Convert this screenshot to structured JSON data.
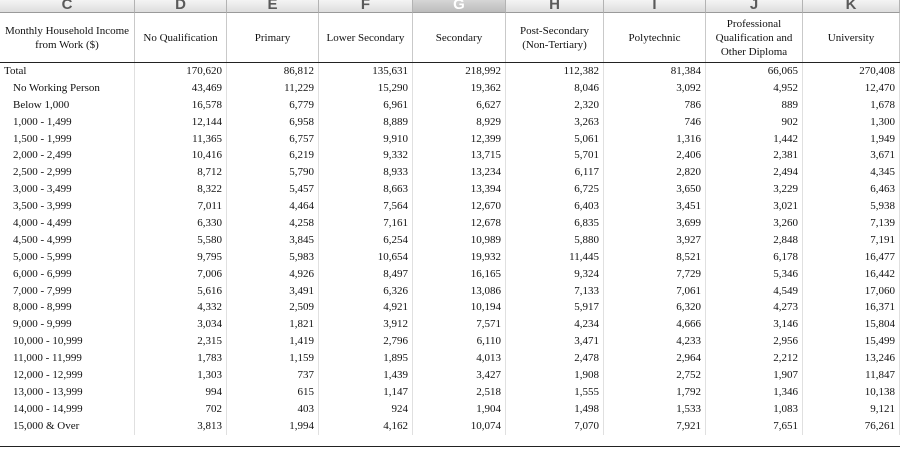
{
  "column_letters": [
    "C",
    "D",
    "E",
    "F",
    "G",
    "H",
    "I",
    "J",
    "K"
  ],
  "selected_column": "G",
  "headers": [
    "Monthly Household Income from Work ($)",
    "No Qualification",
    "Primary",
    "Lower Secondary",
    "Secondary",
    "Post-Secondary (Non-Tertiary)",
    "Polytechnic",
    "Professional Qualification and Other Diploma",
    "University"
  ],
  "rows": [
    {
      "label": "Total",
      "values": [
        "170,620",
        "86,812",
        "135,631",
        "218,992",
        "112,382",
        "81,384",
        "66,065",
        "270,408"
      ]
    },
    {
      "label": "No Working Person",
      "values": [
        "43,469",
        "11,229",
        "15,290",
        "19,362",
        "8,046",
        "3,092",
        "4,952",
        "12,470"
      ]
    },
    {
      "label": "Below 1,000",
      "values": [
        "16,578",
        "6,779",
        "6,961",
        "6,627",
        "2,320",
        "786",
        "889",
        "1,678"
      ]
    },
    {
      "label": "1,000 - 1,499",
      "values": [
        "12,144",
        "6,958",
        "8,889",
        "8,929",
        "3,263",
        "746",
        "902",
        "1,300"
      ]
    },
    {
      "label": "1,500 - 1,999",
      "values": [
        "11,365",
        "6,757",
        "9,910",
        "12,399",
        "5,061",
        "1,316",
        "1,442",
        "1,949"
      ]
    },
    {
      "label": "2,000 - 2,499",
      "values": [
        "10,416",
        "6,219",
        "9,332",
        "13,715",
        "5,701",
        "2,406",
        "2,381",
        "3,671"
      ]
    },
    {
      "label": "2,500 - 2,999",
      "values": [
        "8,712",
        "5,790",
        "8,933",
        "13,234",
        "6,117",
        "2,820",
        "2,494",
        "4,345"
      ]
    },
    {
      "label": "3,000 - 3,499",
      "values": [
        "8,322",
        "5,457",
        "8,663",
        "13,394",
        "6,725",
        "3,650",
        "3,229",
        "6,463"
      ]
    },
    {
      "label": "3,500 - 3,999",
      "values": [
        "7,011",
        "4,464",
        "7,564",
        "12,670",
        "6,403",
        "3,451",
        "3,021",
        "5,938"
      ]
    },
    {
      "label": "4,000 - 4,499",
      "values": [
        "6,330",
        "4,258",
        "7,161",
        "12,678",
        "6,835",
        "3,699",
        "3,260",
        "7,139"
      ]
    },
    {
      "label": "4,500 - 4,999",
      "values": [
        "5,580",
        "3,845",
        "6,254",
        "10,989",
        "5,880",
        "3,927",
        "2,848",
        "7,191"
      ]
    },
    {
      "label": "5,000 - 5,999",
      "values": [
        "9,795",
        "5,983",
        "10,654",
        "19,932",
        "11,445",
        "8,521",
        "6,178",
        "16,477"
      ]
    },
    {
      "label": "6,000 - 6,999",
      "values": [
        "7,006",
        "4,926",
        "8,497",
        "16,165",
        "9,324",
        "7,729",
        "5,346",
        "16,442"
      ]
    },
    {
      "label": "7,000 - 7,999",
      "values": [
        "5,616",
        "3,491",
        "6,326",
        "13,086",
        "7,133",
        "7,061",
        "4,549",
        "17,060"
      ]
    },
    {
      "label": "8,000 - 8,999",
      "values": [
        "4,332",
        "2,509",
        "4,921",
        "10,194",
        "5,917",
        "6,320",
        "4,273",
        "16,371"
      ]
    },
    {
      "label": "9,000 - 9,999",
      "values": [
        "3,034",
        "1,821",
        "3,912",
        "7,571",
        "4,234",
        "4,666",
        "3,146",
        "15,804"
      ]
    },
    {
      "label": "10,000 - 10,999",
      "values": [
        "2,315",
        "1,419",
        "2,796",
        "6,110",
        "3,471",
        "4,233",
        "2,956",
        "15,499"
      ]
    },
    {
      "label": "11,000 - 11,999",
      "values": [
        "1,783",
        "1,159",
        "1,895",
        "4,013",
        "2,478",
        "2,964",
        "2,212",
        "13,246"
      ]
    },
    {
      "label": "12,000 - 12,999",
      "values": [
        "1,303",
        "737",
        "1,439",
        "3,427",
        "1,908",
        "2,752",
        "1,907",
        "11,847"
      ]
    },
    {
      "label": "13,000 - 13,999",
      "values": [
        "994",
        "615",
        "1,147",
        "2,518",
        "1,555",
        "1,792",
        "1,346",
        "10,138"
      ]
    },
    {
      "label": "14,000 - 14,999",
      "values": [
        "702",
        "403",
        "924",
        "1,904",
        "1,498",
        "1,533",
        "1,083",
        "9,121"
      ]
    },
    {
      "label": "15,000 & Over",
      "values": [
        "3,813",
        "1,994",
        "4,162",
        "10,074",
        "7,070",
        "7,921",
        "7,651",
        "76,261"
      ]
    }
  ]
}
